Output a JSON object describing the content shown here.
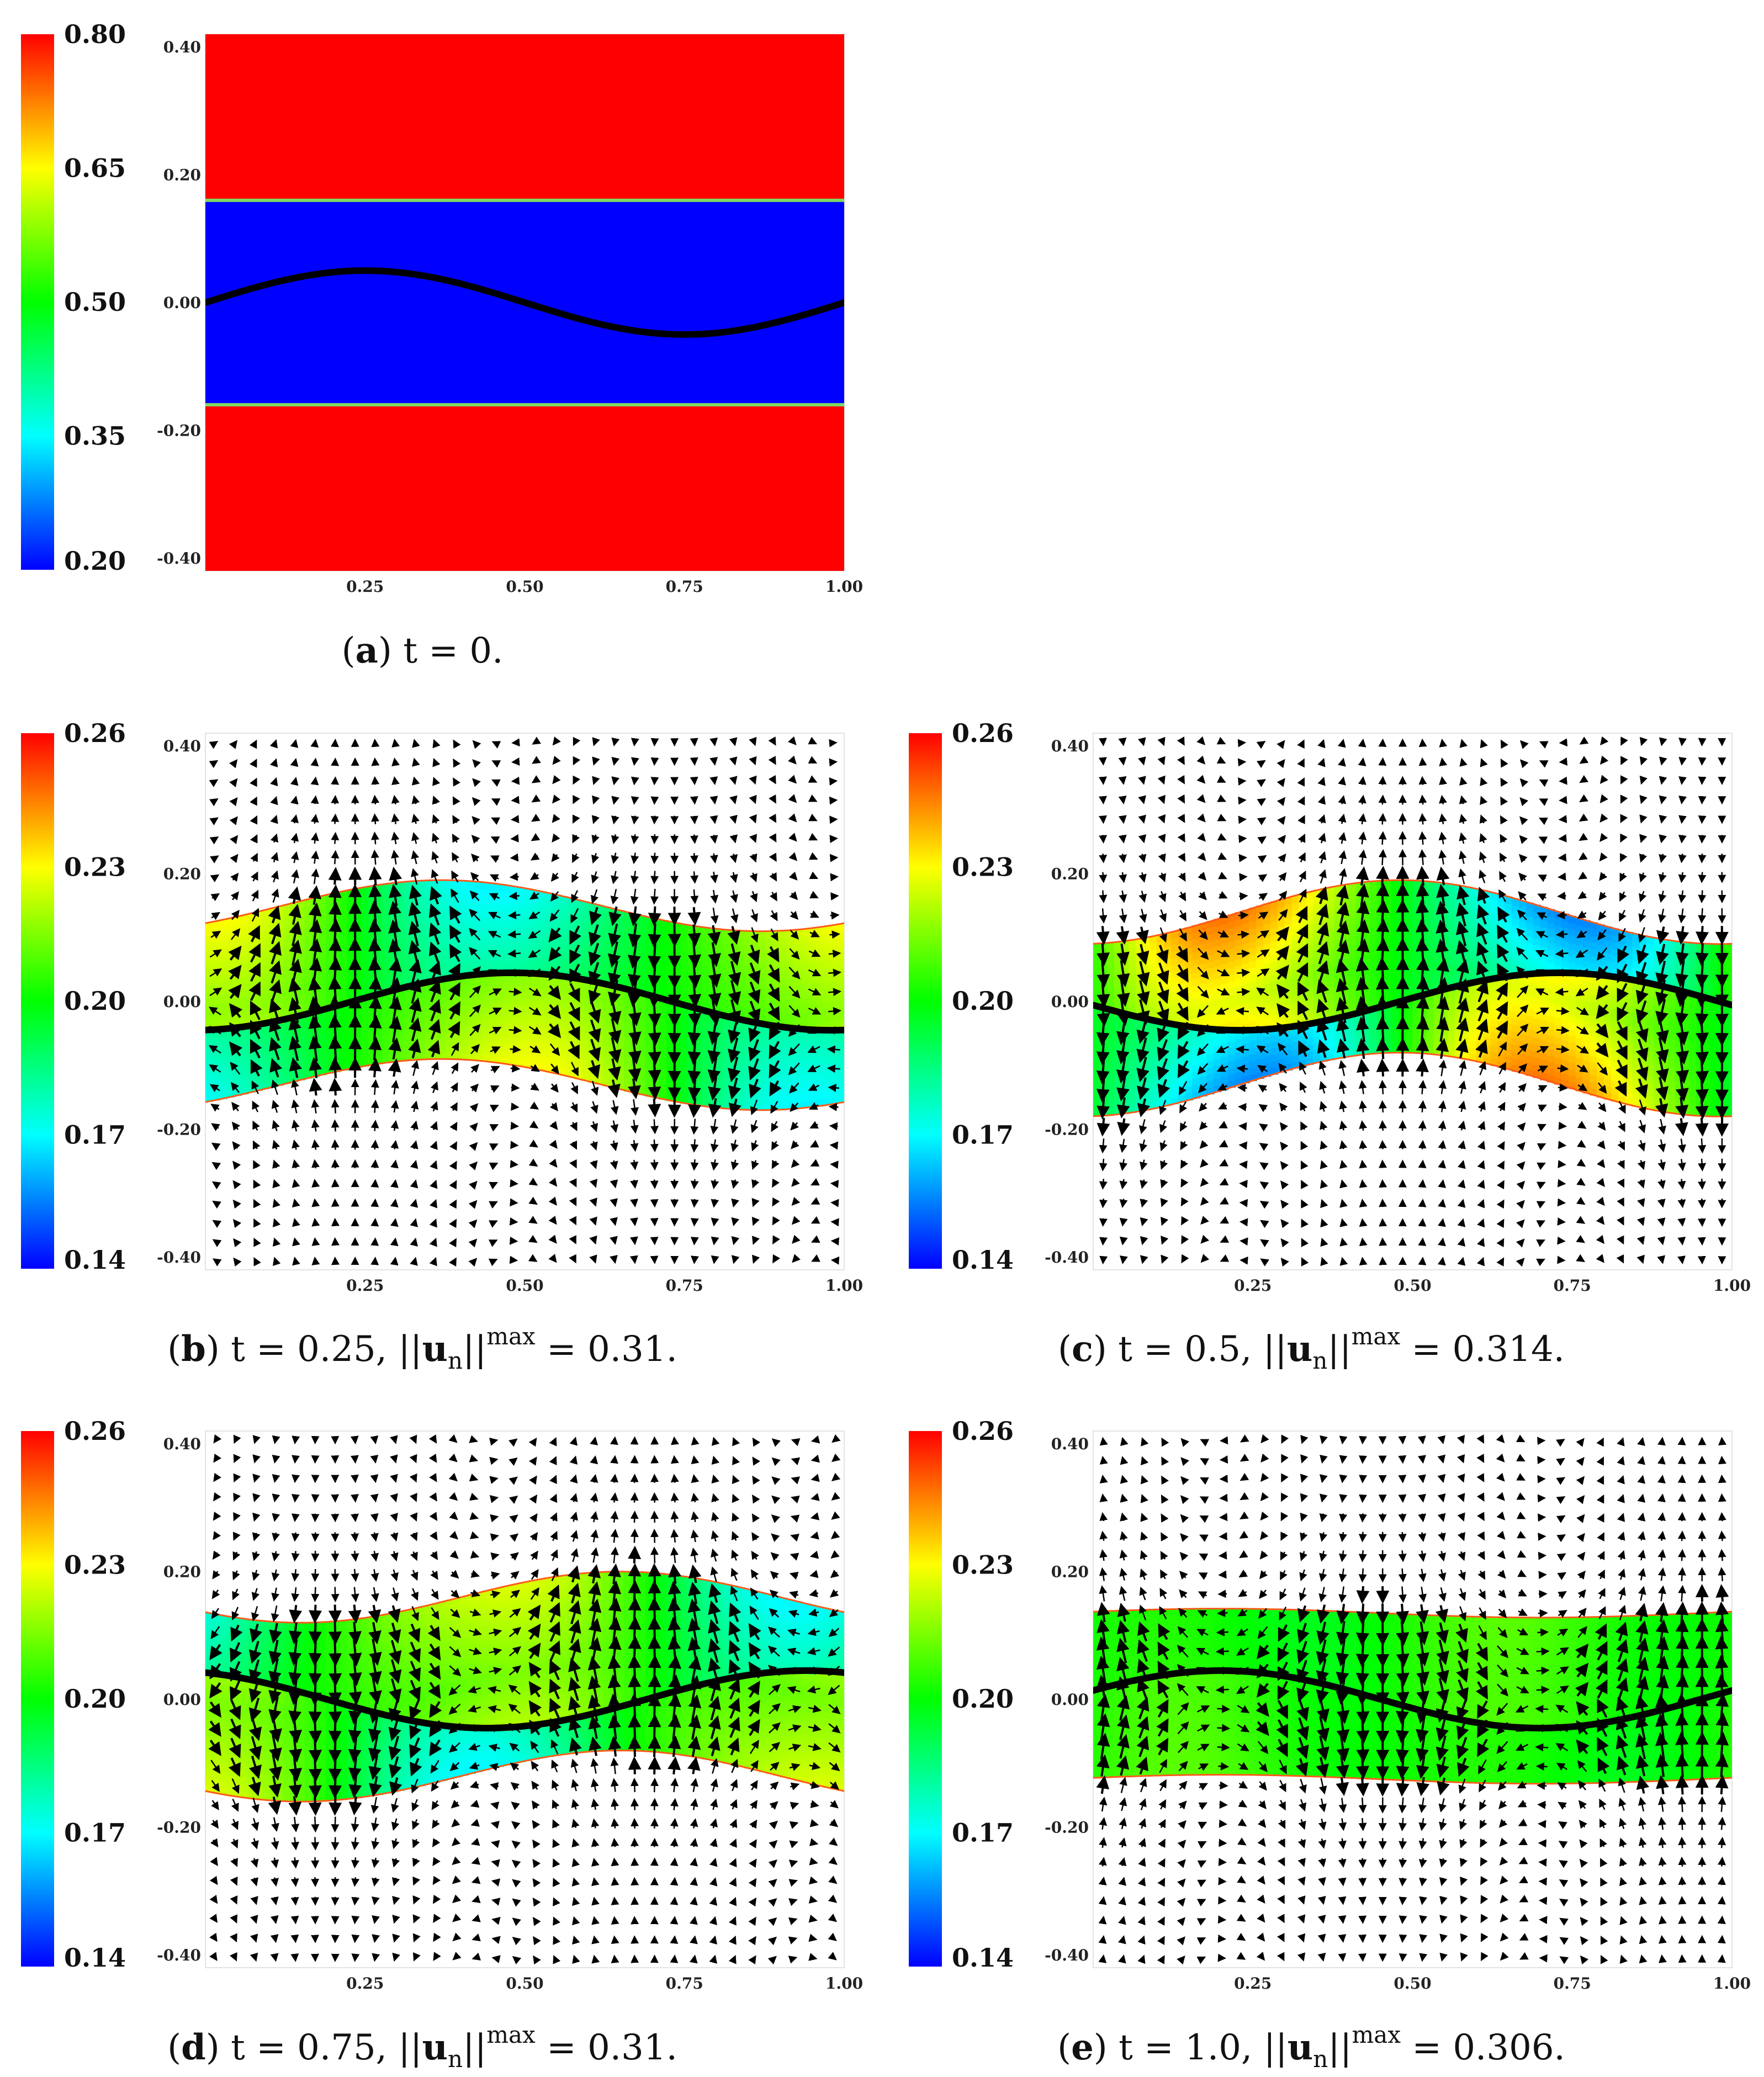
{
  "figure": {
    "panels": [
      {
        "id": "a",
        "caption": {
          "letter": "a",
          "text": "t = 0.",
          "norm": ""
        },
        "colorbar": {
          "min": 0.2,
          "max": 0.8,
          "ticks": [
            "0.80",
            "0.65",
            "0.50",
            "0.35",
            "0.20"
          ]
        },
        "layout": {
          "cb": [
            38,
            62,
            60,
            970
          ],
          "plot": [
            372,
            62,
            1157,
            972
          ]
        }
      },
      {
        "id": "b",
        "caption": {
          "letter": "b",
          "text": "t = 0.25, ||u",
          "sub": "n",
          "mid": "||",
          "sup": "max",
          "val": " = 0.31.",
          "norm": ""
        },
        "colorbar": {
          "min": 0.14,
          "max": 0.26,
          "ticks": [
            "0.26",
            "0.23",
            "0.20",
            "0.17",
            "0.14"
          ]
        },
        "layout": {
          "cb": [
            38,
            1328,
            60,
            970
          ],
          "plot": [
            372,
            1328,
            1157,
            972
          ]
        }
      },
      {
        "id": "c",
        "caption": {
          "letter": "c",
          "text": "t = 0.5, ||u",
          "sub": "n",
          "mid": "||",
          "sup": "max",
          "val": " = 0.314.",
          "norm": ""
        },
        "colorbar": {
          "min": 0.14,
          "max": 0.26,
          "ticks": [
            "0.26",
            "0.23",
            "0.20",
            "0.17",
            "0.14"
          ]
        },
        "layout": {
          "cb": [
            1646,
            1328,
            60,
            970
          ],
          "plot": [
            1980,
            1328,
            1157,
            972
          ]
        }
      },
      {
        "id": "d",
        "caption": {
          "letter": "d",
          "text": "t = 0.75, ||u",
          "sub": "n",
          "mid": "||",
          "sup": "max",
          "val": " = 0.31.",
          "norm": ""
        },
        "colorbar": {
          "min": 0.14,
          "max": 0.26,
          "ticks": [
            "0.26",
            "0.23",
            "0.20",
            "0.17",
            "0.14"
          ]
        },
        "layout": {
          "cb": [
            38,
            2592,
            60,
            970
          ],
          "plot": [
            372,
            2592,
            1157,
            972
          ]
        }
      },
      {
        "id": "e",
        "caption": {
          "letter": "e",
          "text": "t = 1.0, ||u",
          "sub": "n",
          "mid": "||",
          "sup": "max",
          "val": " = 0.306.",
          "norm": ""
        },
        "colorbar": {
          "min": 0.14,
          "max": 0.26,
          "ticks": [
            "0.26",
            "0.23",
            "0.20",
            "0.17",
            "0.14"
          ]
        },
        "layout": {
          "cb": [
            1646,
            2592,
            60,
            970
          ],
          "plot": [
            1980,
            2592,
            1157,
            972
          ]
        }
      }
    ]
  },
  "chart_data": [
    {
      "type": "heatmap",
      "panel": "a",
      "title": "",
      "xlabel": "",
      "ylabel": "",
      "xlim": [
        0.0,
        1.0
      ],
      "ylim": [
        -0.42,
        0.42
      ],
      "x_ticks": [
        "0.25",
        "0.50",
        "0.75",
        "1.00"
      ],
      "y_ticks": [
        "0.40",
        "0.20",
        "0.00",
        "-0.20",
        "-0.40"
      ],
      "colorbar_range": [
        0.2,
        0.8
      ],
      "band": {
        "center": 0.0,
        "half_width": 0.16,
        "amplitude": 0.0
      },
      "field": {
        "inside": 0.2,
        "outside": 0.8
      },
      "interface": {
        "amplitude": 0.05,
        "phase": 0.0
      },
      "vectors": false
    },
    {
      "type": "heatmap",
      "panel": "b",
      "title": "",
      "xlabel": "",
      "ylabel": "",
      "xlim": [
        0.0,
        1.0
      ],
      "ylim": [
        -0.42,
        0.42
      ],
      "x_ticks": [
        "0.25",
        "0.50",
        "0.75",
        "1.00"
      ],
      "y_ticks": [
        "0.40",
        "0.20",
        "0.00",
        "-0.20",
        "-0.40"
      ],
      "colorbar_range": [
        0.14,
        0.26
      ],
      "band": {
        "center": 0.01,
        "half_width": 0.14,
        "amplitude": 0.04,
        "phase": 0.12
      },
      "field": {
        "base": 0.2,
        "amp": 0.03
      },
      "interface": {
        "amplitude": 0.045,
        "phase": 0.23
      },
      "vectors": true,
      "max_velocity": 0.31
    },
    {
      "type": "heatmap",
      "panel": "c",
      "title": "",
      "xlabel": "",
      "ylabel": "",
      "xlim": [
        0.0,
        1.0
      ],
      "ylim": [
        -0.42,
        0.42
      ],
      "x_ticks": [
        "0.25",
        "0.50",
        "0.75",
        "1.00"
      ],
      "y_ticks": [
        "0.40",
        "0.20",
        "0.00",
        "-0.20",
        "-0.40"
      ],
      "colorbar_range": [
        0.14,
        0.26
      ],
      "band": {
        "center": 0.005,
        "half_width": 0.135,
        "amplitude": 0.05,
        "phase": 0.23
      },
      "field": {
        "base": 0.2,
        "amp": 0.045
      },
      "interface": {
        "amplitude": 0.045,
        "phase": 0.48
      },
      "vectors": true,
      "max_velocity": 0.314
    },
    {
      "type": "heatmap",
      "panel": "d",
      "title": "",
      "xlabel": "",
      "ylabel": "",
      "xlim": [
        0.0,
        1.0
      ],
      "ylim": [
        -0.42,
        0.42
      ],
      "x_ticks": [
        "0.25",
        "0.50",
        "0.75",
        "1.00"
      ],
      "y_ticks": [
        "0.40",
        "0.20",
        "0.00",
        "-0.20",
        "-0.40"
      ],
      "colorbar_range": [
        0.14,
        0.26
      ],
      "band": {
        "center": 0.02,
        "half_width": 0.14,
        "amplitude": 0.04,
        "phase": 0.4
      },
      "field": {
        "base": 0.2,
        "amp": 0.028
      },
      "interface": {
        "amplitude": 0.045,
        "phase": 0.69
      },
      "vectors": true,
      "max_velocity": 0.31
    },
    {
      "type": "heatmap",
      "panel": "e",
      "title": "",
      "xlabel": "",
      "ylabel": "",
      "xlim": [
        0.0,
        1.0
      ],
      "ylim": [
        -0.42,
        0.42
      ],
      "x_ticks": [
        "0.25",
        "0.50",
        "0.75",
        "1.00"
      ],
      "y_ticks": [
        "0.40",
        "0.20",
        "0.00",
        "-0.20",
        "-0.40"
      ],
      "colorbar_range": [
        0.14,
        0.26
      ],
      "band": {
        "center": 0.005,
        "half_width": 0.13,
        "amplitude": 0.007,
        "phase": 0.95
      },
      "field": {
        "base": 0.203,
        "amp": 0.004
      },
      "interface": {
        "amplitude": 0.045,
        "phase": 0.95
      },
      "vectors": true,
      "max_velocity": 0.306
    }
  ]
}
